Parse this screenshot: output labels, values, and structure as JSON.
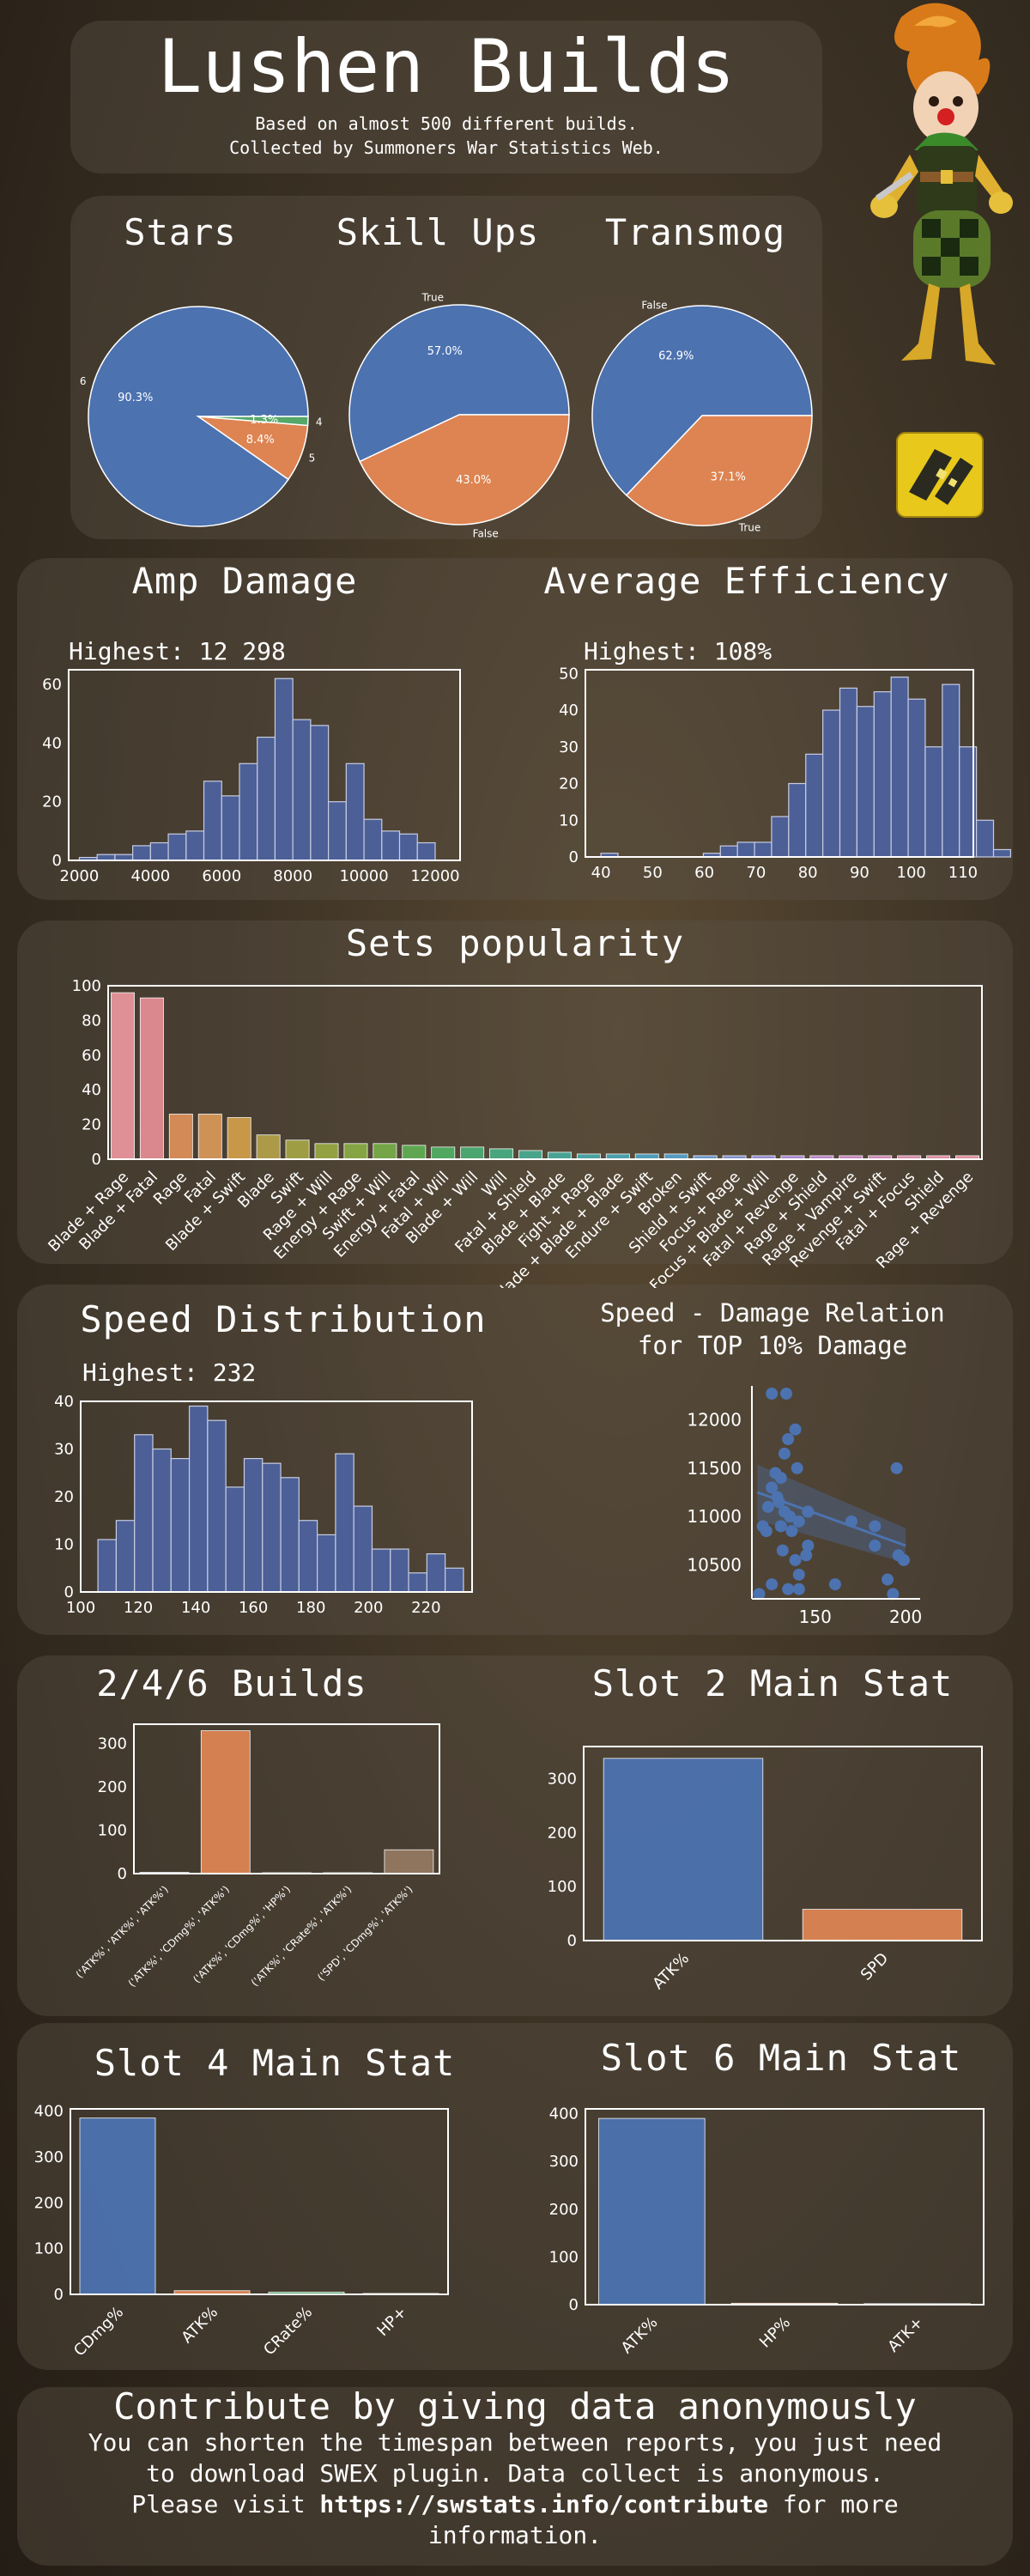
{
  "header": {
    "title": "Lushen Builds",
    "subtitle_line1": "Based on almost 500 different builds.",
    "subtitle_line2": "Collected by Summoners War Statistics Web."
  },
  "sections": {
    "stars": "Stars",
    "skill_ups": "Skill Ups",
    "transmog": "Transmog",
    "amp_damage": "Amp Damage",
    "avg_efficiency": "Average Efficiency",
    "sets_popularity": "Sets popularity",
    "speed_distribution": "Speed Distribution",
    "speed_damage_line1": "Speed - Damage Relation",
    "speed_damage_line2": "for TOP 10% Damage",
    "builds_246": "2/4/6 Builds",
    "slot2": "Slot 2 Main Stat",
    "slot4": "Slot 4 Main Stat",
    "slot6": "Slot 6 Main Stat"
  },
  "highlights": {
    "amp_damage": "Highest: 12 298",
    "avg_efficiency": "Highest: 108%",
    "speed": "Highest: 232"
  },
  "footer": {
    "title": "Contribute by giving data anonymously",
    "line1": "You can shorten the timespan between reports, you just need",
    "line2": "to download SWEX plugin. Data collect is anonymous.",
    "line3_pre": "Please visit ",
    "line3_link": "https://swstats.info/contribute",
    "line3_post": " for more",
    "line4": "information."
  },
  "colors": {
    "blue": "#4c72b0",
    "orange": "#dd8452",
    "green": "#55a868",
    "panel": "rgba(90,80,70,0.42)"
  },
  "icons": {
    "mascot": "lushen-character",
    "monster_icon": "lushen-monster-icon"
  },
  "chart_data": [
    {
      "id": "stars",
      "type": "pie",
      "labels": [
        "6",
        "5",
        "4"
      ],
      "values": [
        90.3,
        8.4,
        1.3
      ],
      "pct_labels": [
        "90.3%",
        "8.4%",
        "1.3%"
      ],
      "colors": [
        "#4c72b0",
        "#dd8452",
        "#55a868"
      ]
    },
    {
      "id": "skillups",
      "type": "pie",
      "labels": [
        "True",
        "False"
      ],
      "values": [
        57.0,
        43.0
      ],
      "pct_labels": [
        "57.0%",
        "43.0%"
      ],
      "colors": [
        "#4c72b0",
        "#dd8452"
      ]
    },
    {
      "id": "transmog",
      "type": "pie",
      "labels": [
        "False",
        "True"
      ],
      "values": [
        62.9,
        37.1
      ],
      "pct_labels": [
        "62.9%",
        "37.1%"
      ],
      "colors": [
        "#4c72b0",
        "#dd8452"
      ]
    },
    {
      "id": "amp",
      "type": "bar",
      "title": "Amp Damage",
      "xlim": [
        1700,
        12700
      ],
      "ylim": [
        0,
        65
      ],
      "xticks": [
        2000,
        4000,
        6000,
        8000,
        10000,
        12000
      ],
      "yticks": [
        0,
        20,
        40,
        60
      ],
      "bin_start": 2000,
      "bin_width": 500,
      "values": [
        1,
        2,
        2,
        5,
        6,
        9,
        10,
        27,
        22,
        33,
        42,
        62,
        48,
        46,
        20,
        33,
        14,
        10,
        9,
        6
      ]
    },
    {
      "id": "eff",
      "type": "bar",
      "title": "Average Efficiency",
      "xlim": [
        37,
        112
      ],
      "ylim": [
        0,
        51
      ],
      "xticks": [
        40,
        50,
        60,
        70,
        80,
        90,
        100,
        110
      ],
      "yticks": [
        0,
        10,
        20,
        30,
        40,
        50
      ],
      "bin_start": 40,
      "bin_width": 3.3,
      "values": [
        1,
        0,
        0,
        0,
        0,
        0,
        1,
        3,
        4,
        4,
        11,
        20,
        28,
        40,
        46,
        41,
        45,
        49,
        43,
        30,
        47,
        30,
        10,
        2
      ]
    },
    {
      "id": "sets",
      "type": "bar",
      "title": "Sets popularity",
      "ylim": [
        0,
        100
      ],
      "yticks": [
        0,
        20,
        40,
        60,
        80,
        100
      ],
      "categories": [
        "Blade + Rage",
        "Blade + Fatal",
        "Rage",
        "Fatal",
        "Blade + Swift",
        "Blade",
        "Swift",
        "Rage + Will",
        "Energy + Rage",
        "Swift + Will",
        "Energy + Fatal",
        "Fatal + Will",
        "Blade + Will",
        "Will",
        "Fatal + Shield",
        "Blade + Blade",
        "Fight + Rage",
        "Blade + Blade + Blade",
        "Endure + Swift",
        "Broken",
        "Shield + Swift",
        "Focus + Rage",
        "Focus + Blade + Will",
        "Fatal + Revenge",
        "Rage + Shield",
        "Rage + Vampire",
        "Revenge + Swift",
        "Fatal + Focus",
        "Shield",
        "Rage + Revenge"
      ],
      "values": [
        96,
        93,
        26,
        26,
        24,
        14,
        11,
        9,
        9,
        9,
        8,
        7,
        7,
        6,
        5,
        4,
        3,
        3,
        3,
        3,
        2,
        2,
        2,
        2,
        2,
        2,
        2,
        2,
        2,
        2
      ],
      "colors": [
        "#e8959c",
        "#e28c93",
        "#dc8f5a",
        "#d6975a",
        "#cf9c4a",
        "#b39f4a",
        "#a4a245",
        "#97a744",
        "#88aa44",
        "#76ab48",
        "#5fad52",
        "#50ad62",
        "#4bab73",
        "#49aa82",
        "#48a98f",
        "#48a89a",
        "#49a6a6",
        "#4aa5b1",
        "#4ea2bf",
        "#57a0c9",
        "#6a9ad3",
        "#8294d7",
        "#9a8ed9",
        "#b089d6",
        "#c086cf",
        "#cc86c5",
        "#d889bb",
        "#df8db0",
        "#e490a8",
        "#e593a1"
      ]
    },
    {
      "id": "speed",
      "type": "bar",
      "title": "Speed Distribution",
      "xlim": [
        100,
        236
      ],
      "ylim": [
        0,
        40
      ],
      "xticks": [
        100,
        120,
        140,
        160,
        180,
        200,
        220
      ],
      "yticks": [
        0,
        10,
        20,
        30,
        40
      ],
      "bin_start": 106,
      "bin_width": 6.35,
      "values": [
        11,
        15,
        33,
        30,
        28,
        39,
        36,
        22,
        28,
        27,
        24,
        15,
        12,
        29,
        18,
        9,
        9,
        4,
        8,
        5
      ]
    },
    {
      "id": "relation",
      "type": "scatter",
      "title": "Speed - Damage Relation for TOP 10% Damage",
      "xlim": [
        115,
        208
      ],
      "ylim": [
        10150,
        12350
      ],
      "xticks": [
        150,
        200
      ],
      "yticks": [
        10500,
        11000,
        11500,
        12000
      ],
      "points": [
        [
          126,
          12270
        ],
        [
          134,
          12270
        ],
        [
          139,
          11900
        ],
        [
          135,
          11800
        ],
        [
          133,
          11650
        ],
        [
          140,
          11500
        ],
        [
          128,
          11450
        ],
        [
          131,
          11400
        ],
        [
          126,
          11300
        ],
        [
          129,
          11200
        ],
        [
          130,
          11150
        ],
        [
          133,
          11050
        ],
        [
          136,
          11000
        ],
        [
          141,
          10950
        ],
        [
          131,
          10900
        ],
        [
          137,
          10850
        ],
        [
          146,
          10700
        ],
        [
          121,
          10900
        ],
        [
          123,
          10850
        ],
        [
          145,
          10600
        ],
        [
          139,
          10550
        ],
        [
          132,
          10650
        ],
        [
          141,
          10400
        ],
        [
          126,
          10300
        ],
        [
          135,
          10250
        ],
        [
          119,
          10200
        ],
        [
          141,
          10250
        ],
        [
          161,
          10300
        ],
        [
          170,
          10950
        ],
        [
          183,
          10900
        ],
        [
          195,
          11500
        ],
        [
          183,
          10700
        ],
        [
          196,
          10600
        ],
        [
          199,
          10550
        ],
        [
          190,
          10350
        ],
        [
          193,
          10200
        ],
        [
          124,
          11100
        ],
        [
          146,
          11050
        ]
      ],
      "regression": {
        "x": [
          118,
          200
        ],
        "y": [
          11250,
          10700
        ]
      }
    },
    {
      "id": "builds246",
      "type": "bar",
      "title": "2/4/6 Builds",
      "ylim": [
        0,
        345
      ],
      "yticks": [
        0,
        100,
        200,
        300
      ],
      "categories": [
        "('ATK%', 'ATK%', 'ATK%')",
        "('ATK%', 'CDmg%', 'ATK%')",
        "('ATK%', 'CDmg%', 'HP%')",
        "('ATK%', 'CRate%', 'ATK%')",
        "('SPD', 'CDmg%', 'ATK%')"
      ],
      "values": [
        3,
        330,
        2,
        2,
        55
      ],
      "colors": [
        "#4c72b0",
        "#dd8452",
        "#55a868",
        "#c44e52",
        "#937860"
      ]
    },
    {
      "id": "slot2",
      "type": "bar",
      "title": "Slot 2 Main Stat",
      "ylim": [
        0,
        360
      ],
      "yticks": [
        0,
        100,
        200,
        300
      ],
      "categories": [
        "ATK%",
        "SPD"
      ],
      "values": [
        338,
        58
      ],
      "colors": [
        "#4c72b0",
        "#dd8452"
      ]
    },
    {
      "id": "slot4",
      "type": "bar",
      "title": "Slot 4 Main Stat",
      "ylim": [
        0,
        405
      ],
      "yticks": [
        0,
        100,
        200,
        300,
        400
      ],
      "categories": [
        "CDmg%",
        "ATK%",
        "CRate%",
        "HP+"
      ],
      "values": [
        385,
        8,
        5,
        2
      ],
      "colors": [
        "#4c72b0",
        "#dd8452",
        "#55a868",
        "#c44e52"
      ]
    },
    {
      "id": "slot6",
      "type": "bar",
      "title": "Slot 6 Main Stat",
      "ylim": [
        0,
        410
      ],
      "yticks": [
        0,
        100,
        200,
        300,
        400
      ],
      "categories": [
        "ATK%",
        "HP%",
        "ATK+"
      ],
      "values": [
        390,
        3,
        2
      ],
      "colors": [
        "#4c72b0",
        "#dd8452",
        "#55a868"
      ]
    }
  ]
}
